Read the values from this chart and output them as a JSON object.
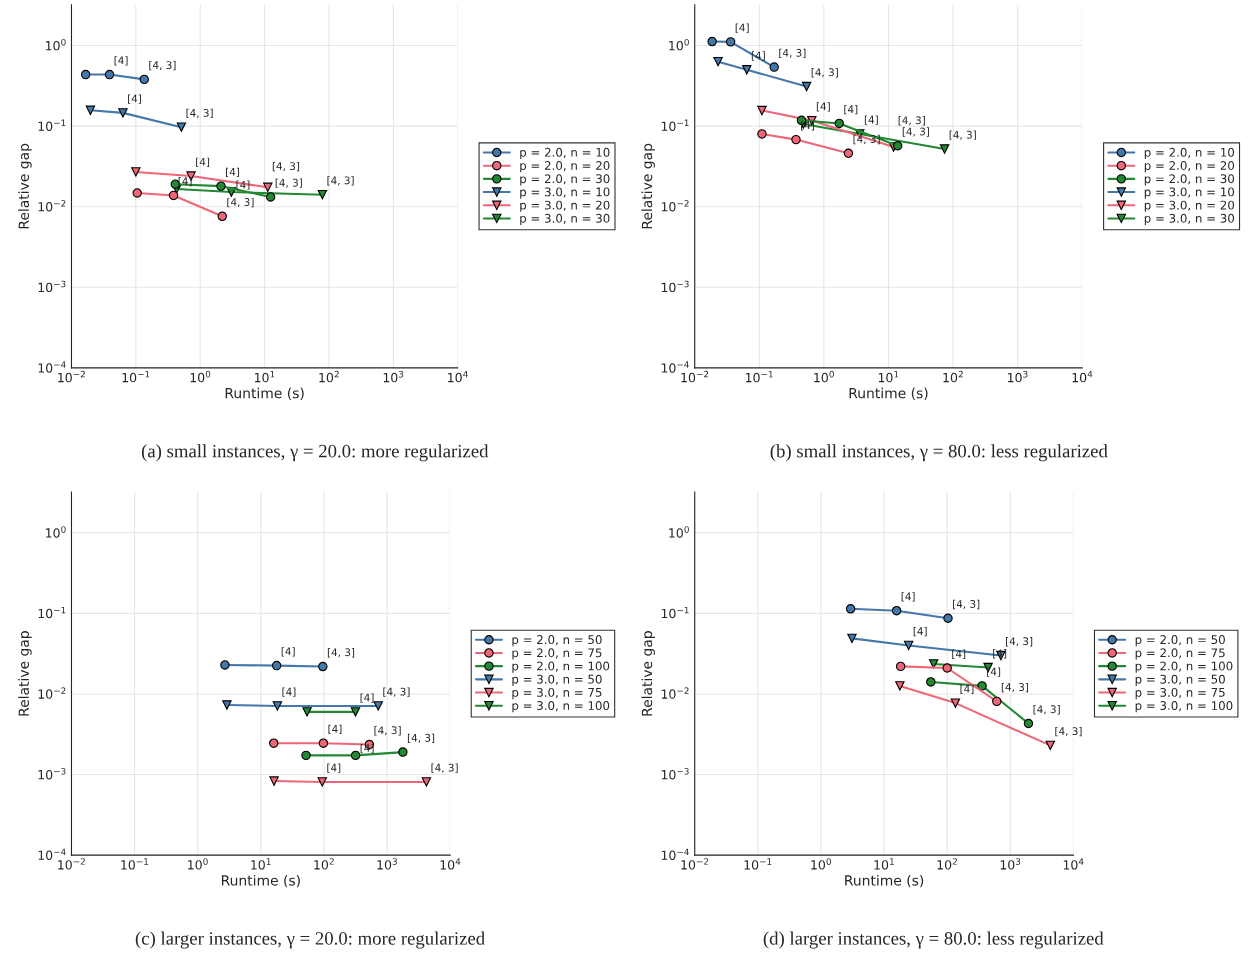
{
  "chart_data": [
    {
      "type": "line",
      "title": "(a) small instances, γ = 20.0: more regularized",
      "xlabel": "Runtime (s)",
      "ylabel": "Relative gap",
      "log": "xy",
      "grid": true,
      "legend": "right",
      "xlim": [
        0.01,
        10000
      ],
      "ylim": [
        0.0001,
        3.2
      ],
      "xticks": [
        {
          "value": 0.01,
          "label": "10$^{−2}$"
        },
        {
          "value": 0.1,
          "label": "10$^{−1}$"
        },
        {
          "value": 1,
          "label": "10$^{0}$"
        },
        {
          "value": 10,
          "label": "10$^{1}$"
        },
        {
          "value": 100,
          "label": "10$^{2}$"
        },
        {
          "value": 1000,
          "label": "10$^{3}$"
        },
        {
          "value": 10000,
          "label": "10$^{4}$"
        }
      ],
      "yticks": [
        {
          "value": 0.0001,
          "label": "10$^{−4}$"
        },
        {
          "value": 0.001,
          "label": "10$^{−3}$"
        },
        {
          "value": 0.01,
          "label": "10$^{−2}$"
        },
        {
          "value": 0.1,
          "label": "10$^{−1}$"
        },
        {
          "value": 1,
          "label": "10$^{0}$"
        }
      ],
      "series": [
        {
          "name": "p = 2.0, n = 10",
          "color": "#4477aa",
          "marker": "circle",
          "x": [
            0.0166,
            0.039,
            0.135
          ],
          "values": [
            0.436,
            0.436,
            0.38
          ]
        },
        {
          "name": "p = 2.0, n = 20",
          "color": "#ee6677",
          "marker": "circle",
          "x": [
            0.105,
            0.385,
            2.2
          ],
          "values": [
            0.0148,
            0.0138,
            0.0076
          ]
        },
        {
          "name": "p = 2.0, n = 30",
          "color": "#228833",
          "marker": "circle",
          "x": [
            0.41,
            2.1,
            12.4
          ],
          "values": [
            0.019,
            0.018,
            0.0132
          ]
        },
        {
          "name": "p = 3.0, n = 10",
          "color": "#4477aa",
          "marker": "triangle",
          "x": [
            0.0197,
            0.063,
            0.51
          ],
          "values": [
            0.157,
            0.146,
            0.097
          ]
        },
        {
          "name": "p = 3.0, n = 20",
          "color": "#ee6677",
          "marker": "triangle",
          "x": [
            0.1,
            0.72,
            11.2
          ],
          "values": [
            0.027,
            0.024,
            0.0174
          ]
        },
        {
          "name": "p = 3.0, n = 30",
          "color": "#228833",
          "marker": "triangle",
          "x": [
            0.43,
            3.05,
            79
          ],
          "values": [
            0.0166,
            0.0152,
            0.0141
          ]
        }
      ],
      "annotations": [
        {
          "text": "[4]",
          "x": 0.039,
          "y": 0.436
        },
        {
          "text": "[4, 3]",
          "x": 0.135,
          "y": 0.38
        },
        {
          "text": "[4]",
          "x": 0.385,
          "y": 0.0138
        },
        {
          "text": "[4, 3]",
          "x": 2.2,
          "y": 0.0076
        },
        {
          "text": "[4]",
          "x": 2.1,
          "y": 0.018
        },
        {
          "text": "[4, 3]",
          "x": 12.4,
          "y": 0.0132
        },
        {
          "text": "[4]",
          "x": 0.063,
          "y": 0.146
        },
        {
          "text": "[4, 3]",
          "x": 0.51,
          "y": 0.097
        },
        {
          "text": "[4]",
          "x": 0.72,
          "y": 0.024
        },
        {
          "text": "[4, 3]",
          "x": 11.2,
          "y": 0.0174
        },
        {
          "text": "[4]",
          "x": 3.05,
          "y": 0.0152
        },
        {
          "text": "[4, 3]",
          "x": 79,
          "y": 0.0141
        }
      ]
    },
    {
      "type": "line",
      "title": "(b) small instances, γ = 80.0: less regularized",
      "xlabel": "Runtime (s)",
      "ylabel": "Relative gap",
      "log": "xy",
      "grid": true,
      "legend": "right",
      "xlim": [
        0.01,
        10000
      ],
      "ylim": [
        0.0001,
        3.2
      ],
      "xticks": [
        {
          "value": 0.01,
          "label": "10$^{−2}$"
        },
        {
          "value": 0.1,
          "label": "10$^{−1}$"
        },
        {
          "value": 1,
          "label": "10$^{0}$"
        },
        {
          "value": 10,
          "label": "10$^{1}$"
        },
        {
          "value": 100,
          "label": "10$^{2}$"
        },
        {
          "value": 1000,
          "label": "10$^{3}$"
        },
        {
          "value": 10000,
          "label": "10$^{4}$"
        }
      ],
      "yticks": [
        {
          "value": 0.0001,
          "label": "10$^{−4}$"
        },
        {
          "value": 0.001,
          "label": "10$^{−3}$"
        },
        {
          "value": 0.01,
          "label": "10$^{−2}$"
        },
        {
          "value": 0.1,
          "label": "10$^{−1}$"
        },
        {
          "value": 1,
          "label": "10$^{0}$"
        }
      ],
      "series": [
        {
          "name": "p = 2.0, n = 10",
          "color": "#4477aa",
          "marker": "circle",
          "x": [
            0.0186,
            0.036,
            0.17
          ],
          "values": [
            1.12,
            1.11,
            0.54
          ]
        },
        {
          "name": "p = 2.0, n = 20",
          "color": "#ee6677",
          "marker": "circle",
          "x": [
            0.11,
            0.37,
            2.4
          ],
          "values": [
            0.08,
            0.068,
            0.046
          ]
        },
        {
          "name": "p = 2.0, n = 30",
          "color": "#228833",
          "marker": "circle",
          "x": [
            0.45,
            1.73,
            13.9
          ],
          "values": [
            0.118,
            0.108,
            0.057
          ]
        },
        {
          "name": "p = 3.0, n = 10",
          "color": "#4477aa",
          "marker": "triangle",
          "x": [
            0.023,
            0.064,
            0.54
          ],
          "values": [
            0.63,
            0.5,
            0.31
          ]
        },
        {
          "name": "p = 3.0, n = 20",
          "color": "#ee6677",
          "marker": "triangle",
          "x": [
            0.11,
            0.65,
            12
          ],
          "values": [
            0.156,
            0.117,
            0.055
          ]
        },
        {
          "name": "p = 3.0, n = 30",
          "color": "#228833",
          "marker": "triangle",
          "x": [
            0.48,
            3.6,
            74
          ],
          "values": [
            0.106,
            0.08,
            0.052
          ]
        }
      ],
      "annotations": [
        {
          "text": "[4]",
          "x": 0.036,
          "y": 1.11
        },
        {
          "text": "[4, 3]",
          "x": 0.17,
          "y": 0.54
        },
        {
          "text": "[4]",
          "x": 0.37,
          "y": 0.068
        },
        {
          "text": "[4, 3]",
          "x": 2.4,
          "y": 0.046
        },
        {
          "text": "[4]",
          "x": 1.73,
          "y": 0.108
        },
        {
          "text": "[4, 3]",
          "x": 13.9,
          "y": 0.057
        },
        {
          "text": "[4]",
          "x": 0.064,
          "y": 0.5
        },
        {
          "text": "[4, 3]",
          "x": 0.54,
          "y": 0.31
        },
        {
          "text": "[4]",
          "x": 0.65,
          "y": 0.117
        },
        {
          "text": "[4, 3]",
          "x": 12,
          "y": 0.055
        },
        {
          "text": "[4]",
          "x": 3.6,
          "y": 0.08
        },
        {
          "text": "[4, 3]",
          "x": 74,
          "y": 0.052
        }
      ]
    },
    {
      "type": "line",
      "title": "(c) larger instances, γ = 20.0: more regularized",
      "xlabel": "Runtime (s)",
      "ylabel": "Relative gap",
      "log": "xy",
      "grid": true,
      "legend": "right",
      "xlim": [
        0.01,
        10000
      ],
      "ylim": [
        0.0001,
        3.2
      ],
      "xticks": [
        {
          "value": 0.01,
          "label": "10$^{−2}$"
        },
        {
          "value": 0.1,
          "label": "10$^{−1}$"
        },
        {
          "value": 1,
          "label": "10$^{0}$"
        },
        {
          "value": 10,
          "label": "10$^{1}$"
        },
        {
          "value": 100,
          "label": "10$^{2}$"
        },
        {
          "value": 1000,
          "label": "10$^{3}$"
        },
        {
          "value": 10000,
          "label": "10$^{4}$"
        }
      ],
      "yticks": [
        {
          "value": 0.0001,
          "label": "10$^{−4}$"
        },
        {
          "value": 0.001,
          "label": "10$^{−3}$"
        },
        {
          "value": 0.01,
          "label": "10$^{−2}$"
        },
        {
          "value": 0.1,
          "label": "10$^{−1}$"
        },
        {
          "value": 1,
          "label": "10$^{0}$"
        }
      ],
      "series": [
        {
          "name": "p = 2.0, n = 50",
          "color": "#4477aa",
          "marker": "circle",
          "x": [
            2.7,
            17.8,
            96
          ],
          "values": [
            0.0229,
            0.0225,
            0.0219
          ]
        },
        {
          "name": "p = 2.0, n = 75",
          "color": "#ee6677",
          "marker": "circle",
          "x": [
            16,
            98,
            525
          ],
          "values": [
            0.00245,
            0.00245,
            0.00236
          ]
        },
        {
          "name": "p = 2.0, n = 100",
          "color": "#228833",
          "marker": "circle",
          "x": [
            52,
            317,
            1780
          ],
          "values": [
            0.00173,
            0.00173,
            0.0019
          ]
        },
        {
          "name": "p = 3.0, n = 50",
          "color": "#4477aa",
          "marker": "triangle",
          "x": [
            2.9,
            18.3,
            725
          ],
          "values": [
            0.0073,
            0.0071,
            0.0071
          ]
        },
        {
          "name": "p = 3.0, n = 75",
          "color": "#ee6677",
          "marker": "triangle",
          "x": [
            16.2,
            94,
            4200
          ],
          "values": [
            0.00083,
            0.00081,
            0.00081
          ]
        },
        {
          "name": "p = 3.0, n = 100",
          "color": "#228833",
          "marker": "triangle",
          "x": [
            54,
            316
          ],
          "values": [
            0.006,
            0.006
          ]
        }
      ],
      "annotations": [
        {
          "text": "[4]",
          "x": 17.8,
          "y": 0.0225
        },
        {
          "text": "[4, 3]",
          "x": 96,
          "y": 0.0219
        },
        {
          "text": "[4]",
          "x": 98,
          "y": 0.00245
        },
        {
          "text": "[4, 3]",
          "x": 525,
          "y": 0.00236
        },
        {
          "text": "[4]",
          "x": 317,
          "y": 0.00173
        },
        {
          "text": "[4, 3]",
          "x": 1780,
          "y": 0.0019
        },
        {
          "text": "[4]",
          "x": 18.3,
          "y": 0.0071
        },
        {
          "text": "[4, 3]",
          "x": 725,
          "y": 0.0071
        },
        {
          "text": "[4]",
          "x": 94,
          "y": 0.00081
        },
        {
          "text": "[4, 3]",
          "x": 4200,
          "y": 0.00081
        },
        {
          "text": "[4]",
          "x": 316,
          "y": 0.006
        }
      ]
    },
    {
      "type": "line",
      "title": "(d) larger instances, γ = 80.0: less regularized",
      "xlabel": "Runtime (s)",
      "ylabel": "Relative gap",
      "log": "xy",
      "grid": true,
      "legend": "right",
      "xlim": [
        0.01,
        10000
      ],
      "ylim": [
        0.0001,
        3.2
      ],
      "xticks": [
        {
          "value": 0.01,
          "label": "10$^{−2}$"
        },
        {
          "value": 0.1,
          "label": "10$^{−1}$"
        },
        {
          "value": 1,
          "label": "10$^{0}$"
        },
        {
          "value": 10,
          "label": "10$^{1}$"
        },
        {
          "value": 100,
          "label": "10$^{2}$"
        },
        {
          "value": 1000,
          "label": "10$^{3}$"
        },
        {
          "value": 10000,
          "label": "10$^{4}$"
        }
      ],
      "yticks": [
        {
          "value": 0.0001,
          "label": "10$^{−4}$"
        },
        {
          "value": 0.001,
          "label": "10$^{−3}$"
        },
        {
          "value": 0.01,
          "label": "10$^{−2}$"
        },
        {
          "value": 0.1,
          "label": "10$^{−1}$"
        },
        {
          "value": 1,
          "label": "10$^{0}$"
        }
      ],
      "series": [
        {
          "name": "p = 2.0, n = 50",
          "color": "#4477aa",
          "marker": "circle",
          "x": [
            2.95,
            15.8,
            103
          ],
          "values": [
            0.114,
            0.108,
            0.087
          ]
        },
        {
          "name": "p = 2.0, n = 75",
          "color": "#ee6677",
          "marker": "circle",
          "x": [
            18.3,
            100,
            610
          ],
          "values": [
            0.022,
            0.021,
            0.0081
          ]
        },
        {
          "name": "p = 2.0, n = 100",
          "color": "#228833",
          "marker": "circle",
          "x": [
            55,
            357,
            1940
          ],
          "values": [
            0.0141,
            0.0126,
            0.0043
          ]
        },
        {
          "name": "p = 3.0, n = 50",
          "color": "#4477aa",
          "marker": "triangle",
          "x": [
            3.1,
            24.5,
            710
          ],
          "values": [
            0.049,
            0.04,
            0.03
          ]
        },
        {
          "name": "p = 3.0, n = 75",
          "color": "#ee6677",
          "marker": "triangle",
          "x": [
            17.8,
            135,
            4300
          ],
          "values": [
            0.0126,
            0.0077,
            0.0023
          ]
        },
        {
          "name": "p = 3.0, n = 100",
          "color": "#228833",
          "marker": "triangle",
          "x": [
            61,
            445
          ],
          "values": [
            0.0236,
            0.0213
          ]
        }
      ],
      "annotations": [
        {
          "text": "[4]",
          "x": 15.8,
          "y": 0.108
        },
        {
          "text": "[4, 3]",
          "x": 103,
          "y": 0.087
        },
        {
          "text": "[4]",
          "x": 100,
          "y": 0.021
        },
        {
          "text": "[4, 3]",
          "x": 610,
          "y": 0.0081
        },
        {
          "text": "[4]",
          "x": 357,
          "y": 0.0126
        },
        {
          "text": "[4, 3]",
          "x": 1940,
          "y": 0.0043
        },
        {
          "text": "[4]",
          "x": 24.5,
          "y": 0.04
        },
        {
          "text": "[4, 3]",
          "x": 710,
          "y": 0.03
        },
        {
          "text": "[4]",
          "x": 135,
          "y": 0.0077
        },
        {
          "text": "[4, 3]",
          "x": 4300,
          "y": 0.0023
        },
        {
          "text": "[4]",
          "x": 445,
          "y": 0.0213
        }
      ]
    }
  ]
}
